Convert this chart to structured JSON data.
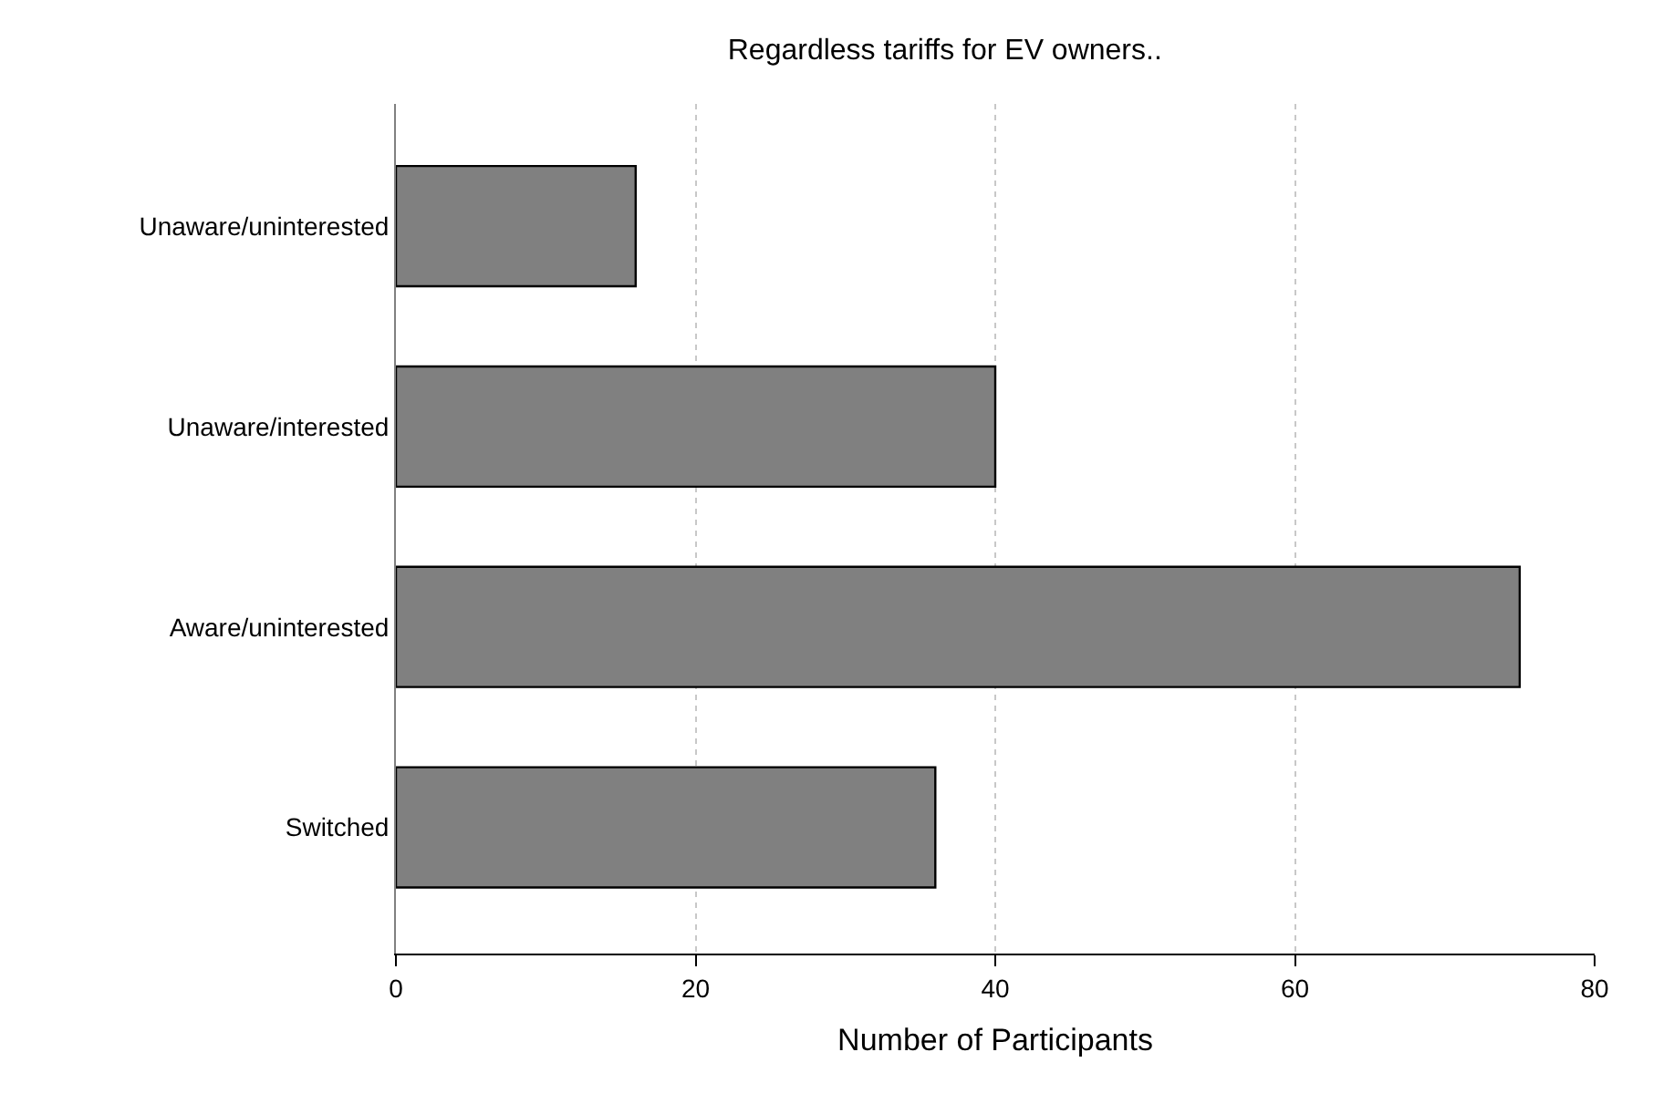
{
  "chart_data": {
    "type": "bar",
    "orientation": "horizontal",
    "title": "Regardless tariffs for EV owners..",
    "xlabel": "Number of Participants",
    "categories": [
      "Unaware/uninterested",
      "Unaware/interested",
      "Aware/uninterested",
      "Switched"
    ],
    "values": [
      16,
      40,
      75,
      36
    ],
    "color": "#808080",
    "xlim": [
      0,
      80
    ],
    "xticks": [
      0,
      20,
      40,
      60,
      80
    ],
    "grid": "x",
    "legend": false
  }
}
